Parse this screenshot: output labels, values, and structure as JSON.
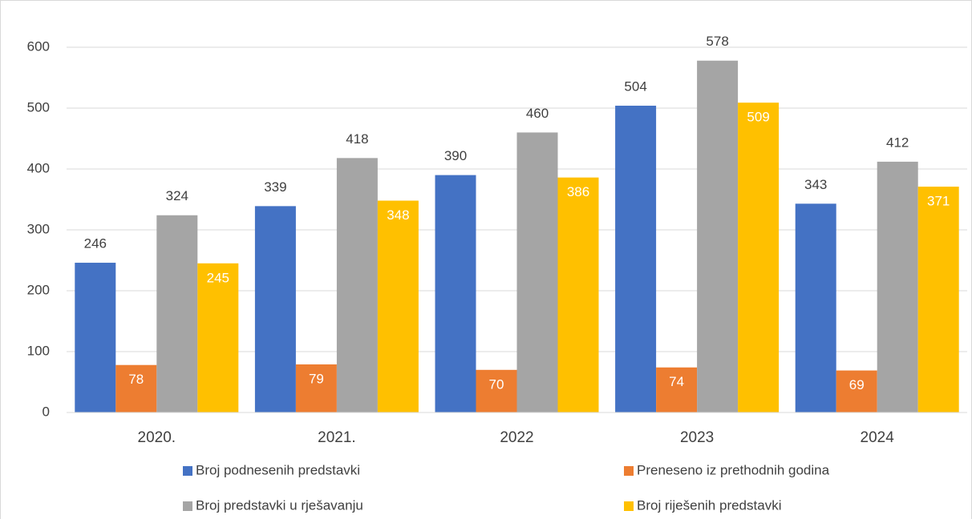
{
  "chart_data": {
    "type": "bar",
    "categories": [
      "2020.",
      "2021.",
      "2022",
      "2023",
      "2024"
    ],
    "series": [
      {
        "name": "Broj podnesenih predstavki",
        "color": "#4472c4",
        "values": [
          246,
          339,
          390,
          504,
          343
        ],
        "label_position": "outside"
      },
      {
        "name": "Preneseno iz prethodnih godina",
        "color": "#ed7d31",
        "values": [
          78,
          79,
          70,
          74,
          69
        ],
        "label_position": "inside"
      },
      {
        "name": "Broj predstavki u rješavanju",
        "color": "#a5a5a5",
        "values": [
          324,
          418,
          460,
          578,
          412
        ],
        "label_position": "outside"
      },
      {
        "name": "Broj riješenih predstavki",
        "color": "#ffc000",
        "values": [
          245,
          348,
          386,
          509,
          371
        ],
        "label_position": "inside"
      }
    ],
    "ylim": [
      0,
      600
    ],
    "yticks": [
      0,
      100,
      200,
      300,
      400,
      500,
      600
    ],
    "grid": true,
    "legend": "bottom"
  }
}
